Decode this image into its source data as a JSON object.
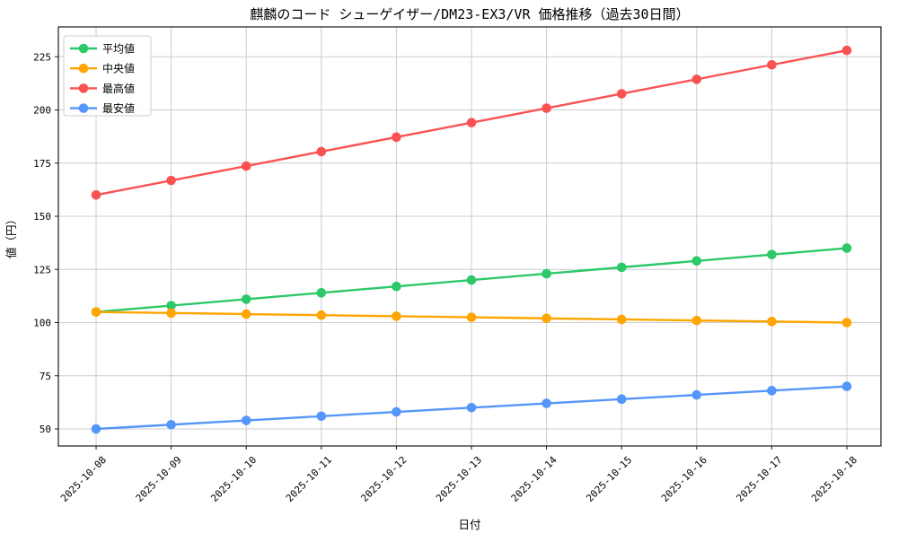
{
  "title": "麒麟のコード シューゲイザー/DM23-EX3/VR 価格推移（過去30日間）",
  "chart_data": {
    "type": "line",
    "title": "麒麟のコード シューゲイザー/DM23-EX3/VR 価格推移（過去30日間）",
    "xlabel": "日付",
    "ylabel": "値（円）",
    "x": [
      "2025-10-08",
      "2025-10-09",
      "2025-10-10",
      "2025-10-11",
      "2025-10-12",
      "2025-10-13",
      "2025-10-14",
      "2025-10-15",
      "2025-10-16",
      "2025-10-17",
      "2025-10-18"
    ],
    "series": [
      {
        "name": "平均値",
        "color": "#2dc869",
        "marker": "circle",
        "values": [
          105,
          108,
          111,
          114,
          117,
          120,
          123,
          126,
          129,
          132,
          135
        ]
      },
      {
        "name": "中央値",
        "color": "#ffa502",
        "marker": "circle",
        "values": [
          105,
          104.5,
          104,
          103.5,
          103,
          102.5,
          102,
          101.5,
          101,
          100.5,
          100
        ]
      },
      {
        "name": "最高値",
        "color": "#fa5252",
        "marker": "circle",
        "values": [
          160,
          166.8,
          173.6,
          180.4,
          187.2,
          194,
          200.8,
          207.6,
          214.4,
          221.2,
          228
        ]
      },
      {
        "name": "最安値",
        "color": "#5596fa",
        "marker": "circle",
        "values": [
          50,
          52,
          54,
          56,
          58,
          60,
          62,
          64,
          66,
          68,
          70
        ]
      }
    ],
    "yticks": [
      50,
      75,
      100,
      125,
      150,
      175,
      200,
      225
    ],
    "ylim": [
      42,
      239
    ],
    "grid": true,
    "grid_color": "#cccccc",
    "spine_color": "#1a1a1a",
    "legend_position": "upper-left",
    "background": "#ffffff"
  }
}
